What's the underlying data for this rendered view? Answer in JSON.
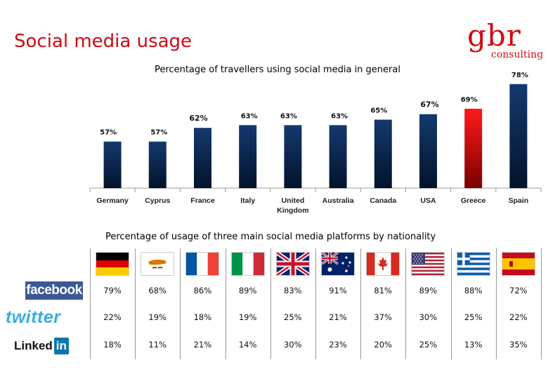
{
  "page": {
    "title": "Social media usage",
    "logo_main": "gbr",
    "logo_sub": "consulting"
  },
  "chart_data": {
    "type": "bar",
    "title": "Percentage of travellers using social media in general",
    "categories": [
      "Germany",
      "Cyprus",
      "France",
      "Italy",
      "United Kingdom",
      "Australia",
      "Canada",
      "USA",
      "Greece",
      "Spain"
    ],
    "category_lines": [
      [
        "Germany"
      ],
      [
        "Cyprus"
      ],
      [
        "France"
      ],
      [
        "Italy"
      ],
      [
        "United",
        "Kingdom"
      ],
      [
        "Australia"
      ],
      [
        "Canada"
      ],
      [
        "USA"
      ],
      [
        "Greece"
      ],
      [
        "Spain"
      ]
    ],
    "values": [
      57,
      57,
      62,
      63,
      63,
      63,
      65,
      67,
      69,
      78
    ],
    "value_labels": [
      "57%",
      "57%",
      "62%",
      "63%",
      "63%",
      "63%",
      "65%",
      "67%",
      "69%",
      "78%"
    ],
    "highlight_index": 8,
    "colors": {
      "default_bar": "#0a2a5e",
      "highlight_bar": "#e8101a"
    },
    "grid": false,
    "legend": "none"
  },
  "table": {
    "title": "Percentage of usage of three main social media platforms by nationality",
    "flags": [
      "germany-flag",
      "cyprus-flag",
      "france-flag",
      "italy-flag",
      "uk-flag",
      "australia-flag",
      "canada-flag",
      "usa-flag",
      "greece-flag",
      "spain-flag"
    ],
    "rows": [
      {
        "platform": "facebook",
        "values": [
          "79%",
          "68%",
          "86%",
          "89%",
          "83%",
          "91%",
          "81%",
          "89%",
          "88%",
          "72%"
        ]
      },
      {
        "platform": "twitter",
        "values": [
          "22%",
          "19%",
          "18%",
          "19%",
          "25%",
          "21%",
          "37%",
          "30%",
          "25%",
          "22%"
        ]
      },
      {
        "platform": "LinkedIn",
        "values": [
          "18%",
          "11%",
          "21%",
          "14%",
          "30%",
          "23%",
          "20%",
          "25%",
          "13%",
          "35%"
        ]
      }
    ],
    "logo_text": {
      "facebook": "facebook",
      "twitter": "twitter",
      "linkedin_a": "Linked",
      "linkedin_b": "in"
    }
  }
}
